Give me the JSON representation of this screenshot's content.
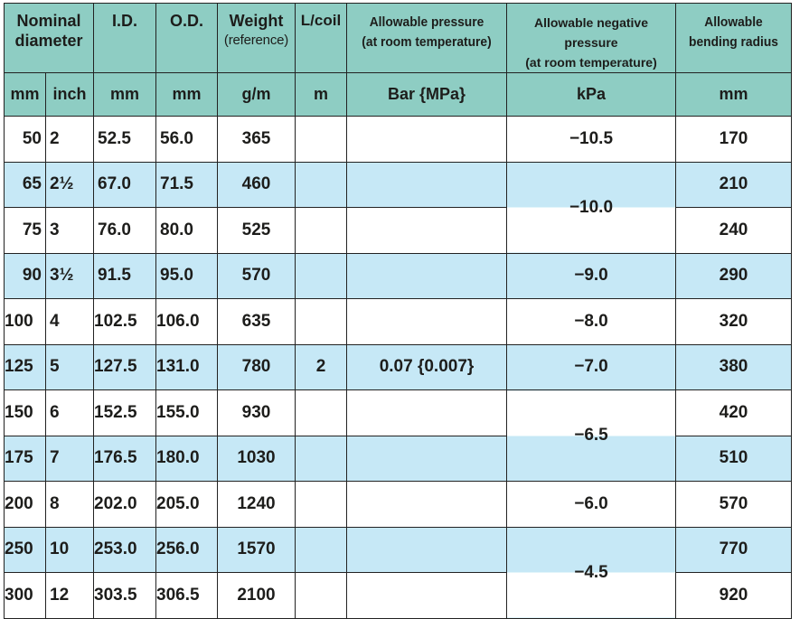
{
  "header": {
    "nominal": "Nominal diameter",
    "nominal_line1": "Nominal",
    "nominal_line2": "diameter",
    "id": "I.D.",
    "od": "O.D.",
    "weight": "Weight",
    "weight_sub": "(reference)",
    "lcoil": "L/coil",
    "pressure": "Allowable pressure",
    "pressure_sub": "(at room temperature)",
    "neg_pressure": "Allowable negative pressure",
    "neg_pressure_sub": "(at room temperature)",
    "bend": "Allowable",
    "bend2": "bending radius"
  },
  "units": {
    "mm": "mm",
    "inch": "inch",
    "id": "mm",
    "od": "mm",
    "weight": "g/m",
    "lcoil": "m",
    "pressure": "Bar {MPa}",
    "neg": "kPa",
    "bend": "mm"
  },
  "rows": [
    {
      "mm": "50",
      "inch": "2",
      "id": "52.5",
      "od": "56.0",
      "weight": "365",
      "bend": "170"
    },
    {
      "mm": "65",
      "inch": "2½",
      "id": "67.0",
      "od": "71.5",
      "weight": "460",
      "bend": "210"
    },
    {
      "mm": "75",
      "inch": "3",
      "id": "76.0",
      "od": "80.0",
      "weight": "525",
      "bend": "240"
    },
    {
      "mm": "90",
      "inch": "3½",
      "id": "91.5",
      "od": "95.0",
      "weight": "570",
      "bend": "290"
    },
    {
      "mm": "100",
      "inch": "4",
      "id": "102.5",
      "od": "106.0",
      "weight": "635",
      "bend": "320"
    },
    {
      "mm": "125",
      "inch": "5",
      "id": "127.5",
      "od": "131.0",
      "weight": "780",
      "bend": "380"
    },
    {
      "mm": "150",
      "inch": "6",
      "id": "152.5",
      "od": "155.0",
      "weight": "930",
      "bend": "420"
    },
    {
      "mm": "175",
      "inch": "7",
      "id": "176.5",
      "od": "180.0",
      "weight": "1030",
      "bend": "510"
    },
    {
      "mm": "200",
      "inch": "8",
      "id": "202.0",
      "od": "205.0",
      "weight": "1240",
      "bend": "570"
    },
    {
      "mm": "250",
      "inch": "10",
      "id": "253.0",
      "od": "256.0",
      "weight": "1570",
      "bend": "770"
    },
    {
      "mm": "300",
      "inch": "12",
      "id": "303.5",
      "od": "306.5",
      "weight": "2100",
      "bend": "920"
    }
  ],
  "merged": {
    "lcoil": "2",
    "pressure": "0.07 {0.007}",
    "neg": [
      "−10.5",
      "−10.0",
      "−9.0",
      "−8.0",
      "−7.0",
      "−6.5",
      "−6.0",
      "−4.5"
    ]
  }
}
